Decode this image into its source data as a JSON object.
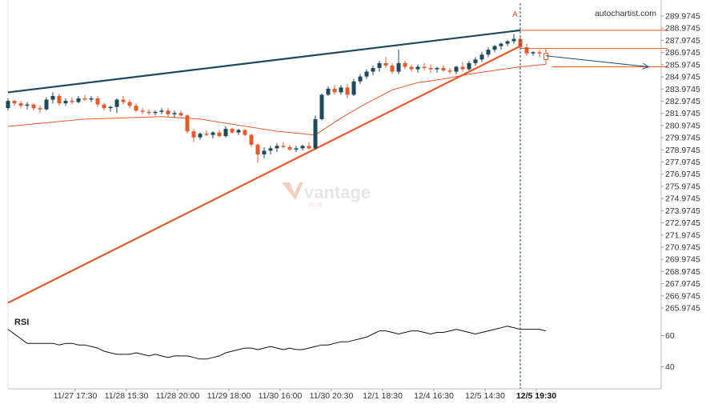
{
  "brand": "autochartist.com",
  "watermark": {
    "word": "vantage",
    "sub": "PLUS"
  },
  "chart_data": {
    "type": "candlestick",
    "colors": {
      "up": "#1b4a5a",
      "down": "#e8592a",
      "support": "#e8592a",
      "resistance": "#1b4a5a",
      "ma": "#e8592a",
      "rsi": "#111111",
      "forecast": "#1b4a5a"
    },
    "price_axis": {
      "min": 265.9745,
      "max": 289.9745,
      "ticks": [
        289.9745,
        288.9745,
        287.9745,
        286.9745,
        285.9745,
        284.9745,
        283.9745,
        282.9745,
        281.9745,
        280.9745,
        279.9745,
        278.9745,
        277.9745,
        276.9745,
        275.9745,
        274.9745,
        273.9745,
        272.9745,
        271.9745,
        270.9745,
        269.9745,
        268.9745,
        267.9745,
        266.9745,
        265.9745
      ],
      "tick_labels": [
        "289.9745",
        "288.9745",
        "287.9745",
        "286.9745",
        "285.9745",
        "284.9745",
        "283.9745",
        "282.9745",
        "281.9745",
        "280.9745",
        "279.9745",
        "278.9745",
        "277.9745",
        "276.9745",
        "275.9745",
        "274.9745",
        "273.9745",
        "272.9745",
        "271.9745",
        "270.9745",
        "269.9745",
        "268.9745",
        "267.9745",
        "266.9745",
        "265.9745"
      ]
    },
    "time_labels": [
      {
        "i": 8,
        "label": "11/27 17:30"
      },
      {
        "i": 16,
        "label": "11/28 15:30"
      },
      {
        "i": 24,
        "label": "11/28 20:00"
      },
      {
        "i": 32,
        "label": "11/29 18:00"
      },
      {
        "i": 40,
        "label": "11/30 16:00"
      },
      {
        "i": 48,
        "label": "11/30 20:30"
      },
      {
        "i": 56,
        "label": "12/1 18:30"
      },
      {
        "i": 64,
        "label": "12/4 16:30"
      },
      {
        "i": 72,
        "label": "12/5 14:30"
      },
      {
        "i": 80,
        "label": "12/5 19:30",
        "bold": true
      }
    ],
    "candles": [
      [
        282.4,
        283.2,
        282.2,
        283.0
      ],
      [
        283.0,
        283.1,
        282.6,
        282.8
      ],
      [
        282.8,
        283.0,
        282.4,
        282.6
      ],
      [
        282.6,
        282.9,
        282.3,
        282.7
      ],
      [
        282.7,
        282.8,
        282.2,
        282.4
      ],
      [
        282.4,
        282.6,
        282.0,
        282.3
      ],
      [
        282.3,
        283.3,
        282.2,
        283.1
      ],
      [
        283.1,
        283.7,
        282.8,
        283.4
      ],
      [
        283.4,
        283.6,
        282.6,
        282.8
      ],
      [
        282.8,
        283.2,
        282.6,
        283.0
      ],
      [
        283.0,
        283.3,
        282.7,
        282.9
      ],
      [
        282.9,
        283.4,
        282.8,
        283.2
      ],
      [
        283.2,
        283.5,
        283.0,
        283.1
      ],
      [
        283.1,
        283.4,
        282.9,
        283.2
      ],
      [
        283.2,
        283.4,
        282.5,
        282.7
      ],
      [
        282.7,
        282.8,
        282.2,
        282.4
      ],
      [
        282.4,
        282.6,
        282.1,
        282.5
      ],
      [
        282.5,
        283.2,
        282.0,
        283.1
      ],
      [
        283.1,
        283.4,
        282.7,
        282.9
      ],
      [
        282.9,
        283.1,
        282.4,
        282.6
      ],
      [
        282.6,
        282.8,
        282.1,
        282.2
      ],
      [
        282.2,
        282.4,
        281.9,
        282.1
      ],
      [
        282.1,
        282.3,
        281.8,
        282.0
      ],
      [
        282.0,
        282.2,
        281.8,
        282.1
      ],
      [
        282.1,
        282.4,
        281.9,
        282.2
      ],
      [
        282.2,
        282.4,
        281.7,
        281.9
      ],
      [
        281.9,
        282.2,
        281.6,
        282.0
      ],
      [
        282.0,
        282.2,
        281.7,
        281.8
      ],
      [
        281.8,
        281.9,
        280.3,
        280.5
      ],
      [
        280.5,
        280.7,
        279.6,
        280.0
      ],
      [
        280.0,
        280.4,
        279.8,
        280.3
      ],
      [
        280.3,
        280.6,
        280.1,
        280.2
      ],
      [
        280.2,
        280.5,
        279.9,
        280.4
      ],
      [
        280.4,
        280.6,
        280.0,
        280.1
      ],
      [
        280.1,
        280.9,
        280.0,
        280.7
      ],
      [
        280.7,
        280.8,
        280.3,
        280.4
      ],
      [
        280.4,
        280.7,
        280.2,
        280.6
      ],
      [
        280.6,
        280.7,
        280.1,
        280.2
      ],
      [
        280.2,
        280.3,
        279.2,
        279.4
      ],
      [
        279.4,
        279.5,
        277.9,
        278.6
      ],
      [
        278.6,
        279.2,
        278.3,
        278.9
      ],
      [
        278.9,
        279.3,
        278.6,
        279.1
      ],
      [
        279.1,
        279.5,
        278.8,
        279.3
      ],
      [
        279.3,
        279.6,
        279.1,
        279.2
      ],
      [
        279.2,
        279.4,
        278.9,
        279.0
      ],
      [
        279.0,
        279.3,
        278.8,
        279.1
      ],
      [
        279.1,
        279.4,
        278.9,
        279.3
      ],
      [
        279.3,
        279.6,
        279.0,
        279.1
      ],
      [
        279.1,
        281.8,
        279.0,
        281.5
      ],
      [
        281.5,
        283.6,
        281.4,
        283.5
      ],
      [
        283.5,
        284.2,
        283.4,
        284.0
      ],
      [
        284.0,
        284.3,
        283.5,
        283.7
      ],
      [
        283.7,
        284.3,
        283.5,
        284.1
      ],
      [
        284.1,
        284.4,
        283.2,
        283.5
      ],
      [
        283.5,
        284.8,
        283.4,
        284.6
      ],
      [
        284.6,
        285.2,
        284.4,
        285.0
      ],
      [
        285.0,
        285.6,
        284.8,
        285.4
      ],
      [
        285.4,
        285.9,
        285.1,
        285.7
      ],
      [
        285.7,
        286.3,
        285.4,
        286.1
      ],
      [
        286.1,
        286.6,
        285.7,
        285.9
      ],
      [
        285.9,
        286.1,
        285.2,
        285.4
      ],
      [
        285.4,
        287.2,
        285.2,
        286.1
      ],
      [
        286.1,
        286.3,
        285.6,
        285.8
      ],
      [
        285.8,
        286.0,
        285.4,
        285.6
      ],
      [
        285.6,
        286.0,
        285.3,
        285.8
      ],
      [
        285.8,
        286.1,
        285.5,
        285.7
      ],
      [
        285.7,
        286.0,
        285.3,
        285.6
      ],
      [
        285.6,
        285.8,
        285.3,
        285.7
      ],
      [
        285.7,
        285.9,
        285.4,
        285.5
      ],
      [
        285.5,
        285.7,
        285.2,
        285.4
      ],
      [
        285.4,
        285.9,
        285.2,
        285.8
      ],
      [
        285.8,
        286.2,
        285.4,
        285.6
      ],
      [
        285.6,
        286.3,
        285.5,
        286.1
      ],
      [
        286.1,
        286.6,
        285.9,
        286.4
      ],
      [
        286.4,
        287.0,
        286.2,
        286.8
      ],
      [
        286.8,
        287.4,
        286.6,
        287.2
      ],
      [
        287.2,
        287.6,
        287.0,
        287.5
      ],
      [
        287.5,
        287.8,
        287.2,
        287.7
      ],
      [
        287.7,
        288.0,
        287.5,
        287.9
      ],
      [
        287.9,
        288.5,
        287.7,
        288.1
      ],
      [
        288.1,
        288.2,
        287.2,
        287.4
      ],
      [
        287.4,
        287.7,
        286.7,
        286.9
      ],
      [
        286.9,
        287.1,
        286.7,
        287.0
      ],
      [
        287.0,
        287.2,
        286.6,
        286.9
      ],
      [
        286.9,
        287.3,
        286.0,
        286.4
      ]
    ],
    "moving_average": [
      [
        0,
        280.9
      ],
      [
        6,
        281.2
      ],
      [
        12,
        281.5
      ],
      [
        18,
        281.6
      ],
      [
        24,
        281.7
      ],
      [
        30,
        281.5
      ],
      [
        36,
        281.0
      ],
      [
        42,
        280.5
      ],
      [
        48,
        280.2
      ],
      [
        52,
        281.6
      ],
      [
        56,
        282.8
      ],
      [
        60,
        283.9
      ],
      [
        64,
        284.5
      ],
      [
        68,
        284.8
      ],
      [
        72,
        285.2
      ],
      [
        76,
        285.5
      ],
      [
        80,
        285.8
      ],
      [
        84,
        286.0
      ]
    ],
    "resistance_line": {
      "from": [
        0,
        283.7
      ],
      "to": [
        80,
        288.8
      ]
    },
    "support_line": {
      "from": [
        0,
        266.4
      ],
      "to": [
        80,
        287.5
      ]
    },
    "pattern_marker": {
      "i": 80,
      "label": "A"
    },
    "levels": [
      {
        "from": 80,
        "to": 103,
        "price": 288.8
      },
      {
        "from": 80,
        "to": 103,
        "price": 287.3
      },
      {
        "from": 85,
        "to": 103,
        "price": 285.8
      }
    ],
    "forecast": {
      "from": [
        84,
        286.7
      ],
      "to": [
        100,
        285.8
      ]
    },
    "signal_line_index": 80,
    "rsi": {
      "label": "RSI",
      "ticks": [
        60,
        40
      ],
      "tick_labels": [
        "60",
        "40"
      ],
      "ylim": [
        28,
        72
      ],
      "values": [
        64,
        61,
        58,
        55,
        55,
        55,
        55,
        55,
        54,
        55,
        55,
        54,
        54,
        53,
        52,
        50,
        49,
        48,
        48,
        48,
        49,
        48,
        47,
        48,
        47,
        46,
        47,
        47,
        47,
        46,
        45,
        45,
        46,
        47,
        49,
        50,
        51,
        52,
        52,
        51,
        52,
        53,
        52,
        51,
        52,
        51,
        51,
        52,
        53,
        54,
        54,
        55,
        56,
        56,
        57,
        58,
        59,
        61,
        63,
        63,
        62,
        61,
        62,
        63,
        63,
        62,
        61,
        62,
        62,
        63,
        64,
        63,
        62,
        61,
        62,
        63,
        64,
        65,
        66,
        65,
        64,
        64,
        64,
        64,
        63
      ]
    }
  }
}
